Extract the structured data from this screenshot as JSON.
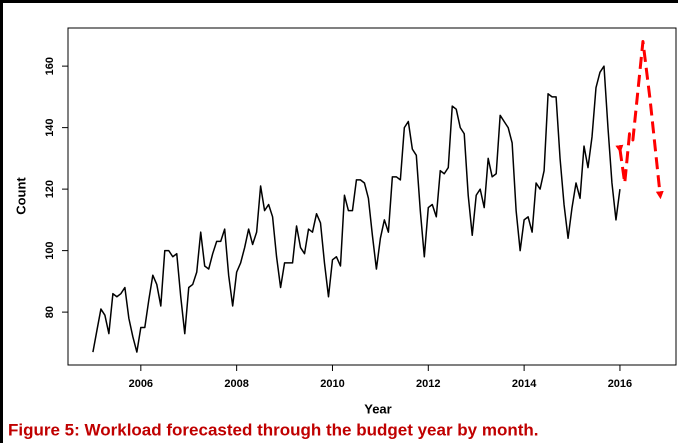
{
  "chart_data": {
    "type": "line",
    "xlabel": "Year",
    "ylabel": "Count",
    "caption": "Figure 5: Workload forecasted through the budget year by month.",
    "xlim": [
      2004.48,
      2017.17
    ],
    "ylim": [
      62.8,
      172.4
    ],
    "xticks": [
      2006,
      2008,
      2010,
      2012,
      2014,
      2016
    ],
    "yticks": [
      80,
      100,
      120,
      140,
      160
    ],
    "series": [
      {
        "color": "#000000",
        "dashed": false,
        "x": [
          2005,
          2005.083,
          2005.167,
          2005.25,
          2005.333,
          2005.417,
          2005.5,
          2005.583,
          2005.667,
          2005.75,
          2005.833,
          2005.917,
          2006,
          2006.083,
          2006.167,
          2006.25,
          2006.333,
          2006.417,
          2006.5,
          2006.583,
          2006.667,
          2006.75,
          2006.833,
          2006.917,
          2007,
          2007.083,
          2007.167,
          2007.25,
          2007.333,
          2007.417,
          2007.5,
          2007.583,
          2007.667,
          2007.75,
          2007.833,
          2007.917,
          2008,
          2008.083,
          2008.167,
          2008.25,
          2008.333,
          2008.417,
          2008.5,
          2008.583,
          2008.667,
          2008.75,
          2008.833,
          2008.917,
          2009,
          2009.083,
          2009.167,
          2009.25,
          2009.333,
          2009.417,
          2009.5,
          2009.583,
          2009.667,
          2009.75,
          2009.833,
          2009.917,
          2010,
          2010.083,
          2010.167,
          2010.25,
          2010.333,
          2010.417,
          2010.5,
          2010.583,
          2010.667,
          2010.75,
          2010.833,
          2010.917,
          2011,
          2011.083,
          2011.167,
          2011.25,
          2011.333,
          2011.417,
          2011.5,
          2011.583,
          2011.667,
          2011.75,
          2011.833,
          2011.917,
          2012,
          2012.083,
          2012.167,
          2012.25,
          2012.333,
          2012.417,
          2012.5,
          2012.583,
          2012.667,
          2012.75,
          2012.833,
          2012.917,
          2013,
          2013.083,
          2013.167,
          2013.25,
          2013.333,
          2013.417,
          2013.5,
          2013.583,
          2013.667,
          2013.75,
          2013.833,
          2013.917,
          2014,
          2014.083,
          2014.167,
          2014.25,
          2014.333,
          2014.417,
          2014.5,
          2014.583,
          2014.667,
          2014.75,
          2014.833,
          2014.917,
          2015,
          2015.083,
          2015.167,
          2015.25,
          2015.333,
          2015.417,
          2015.5,
          2015.583,
          2015.667,
          2015.75,
          2015.833,
          2015.917,
          2016
        ],
        "values": [
          67,
          74,
          81,
          79,
          73,
          86,
          85,
          86,
          88,
          78,
          72,
          67,
          75,
          75,
          84,
          92,
          89,
          82,
          100,
          100,
          98,
          99,
          85,
          73,
          88,
          89,
          93,
          106,
          95,
          94,
          99,
          103,
          103,
          107,
          92,
          82,
          93,
          96,
          101,
          107,
          102,
          106,
          121,
          113,
          115,
          111,
          98,
          88,
          96,
          96,
          96,
          108,
          101,
          99,
          107,
          106,
          112,
          109,
          96,
          85,
          97,
          98,
          95,
          118,
          113,
          113,
          123,
          123,
          122,
          117,
          105,
          94,
          104,
          110,
          106,
          124,
          124,
          123,
          140,
          142,
          133,
          131,
          113,
          98,
          114,
          115,
          111,
          126,
          125,
          127,
          147,
          146,
          140,
          138,
          118,
          105,
          118,
          120,
          114,
          130,
          124,
          125,
          144,
          142,
          140,
          135,
          113,
          100,
          110,
          111,
          106,
          122,
          120,
          126,
          151,
          150,
          150,
          130,
          115,
          104,
          114,
          122,
          117,
          134,
          127,
          137,
          153,
          158,
          160,
          140,
          122,
          110,
          120
        ]
      },
      {
        "color": "#ff0000",
        "dashed": true,
        "x": [
          2016.0,
          2016.1,
          2016.2,
          2016.27,
          2016.48,
          2016.63,
          2016.84
        ],
        "values": [
          133,
          122,
          138,
          136,
          168,
          149,
          118
        ]
      }
    ]
  }
}
